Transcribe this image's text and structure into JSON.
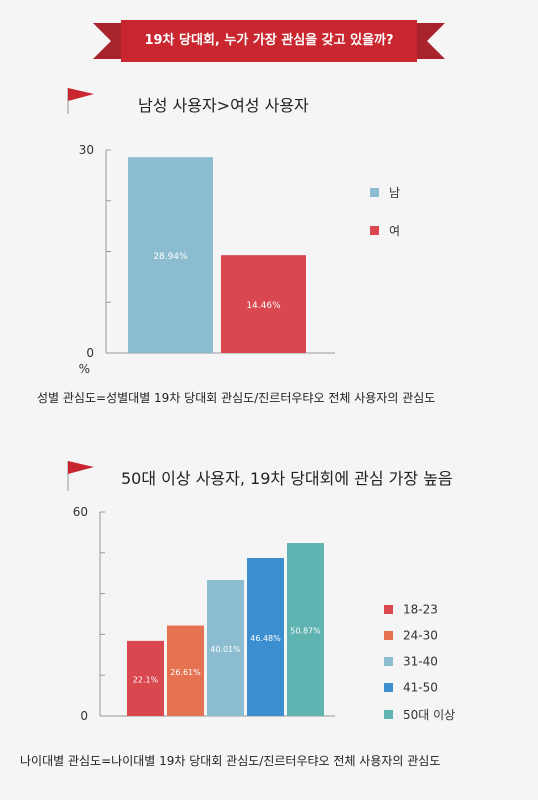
{
  "header": {
    "banner_title": "19차 당대회, 누가 가장 관심을 갖고 있을까?"
  },
  "sections": [
    {
      "title": "남성 사용자>여성 사용자",
      "formula": "성별 관심도=성별대별 19차 당대회 관심도/진르터우탸오 전체 사용자의 관심도"
    },
    {
      "title": "50대 이상 사용자,  19차 당대회에 관심 가장 높음",
      "formula": "나이대별 관심도=나이대별 19차 당대회 관심도/진르터우탸오 전체 사용자의 관심도"
    }
  ],
  "chart_data": [
    {
      "type": "bar",
      "categories": [
        "남",
        "여"
      ],
      "values": [
        28.94,
        14.46
      ],
      "data_labels": [
        "28.94%",
        "14.46%"
      ],
      "colors": [
        "#8cbccf",
        "#d9474f"
      ],
      "ylim": [
        0,
        30
      ],
      "ytick_labels": [
        "0",
        "30"
      ],
      "ylabel": "%",
      "legend": [
        "남",
        "여"
      ],
      "legend_position": "right",
      "grid": false
    },
    {
      "type": "bar",
      "categories": [
        "18-23",
        "24-30",
        "31-40",
        "41-50",
        "50대 이상"
      ],
      "values": [
        22.1,
        26.61,
        40.01,
        46.48,
        50.87
      ],
      "data_labels": [
        "22.1%",
        "26.61%",
        "40.01%",
        "46.48%",
        "50.87%"
      ],
      "colors": [
        "#d9474f",
        "#e57352",
        "#8cbccf",
        "#3b8ed0",
        "#5fb3b0"
      ],
      "ylim": [
        0,
        60
      ],
      "ytick_labels": [
        "0",
        "60"
      ],
      "legend": [
        "18-23",
        "24-30",
        "31-40",
        "41-50",
        "50대 이상"
      ],
      "legend_position": "right",
      "grid": false
    }
  ]
}
